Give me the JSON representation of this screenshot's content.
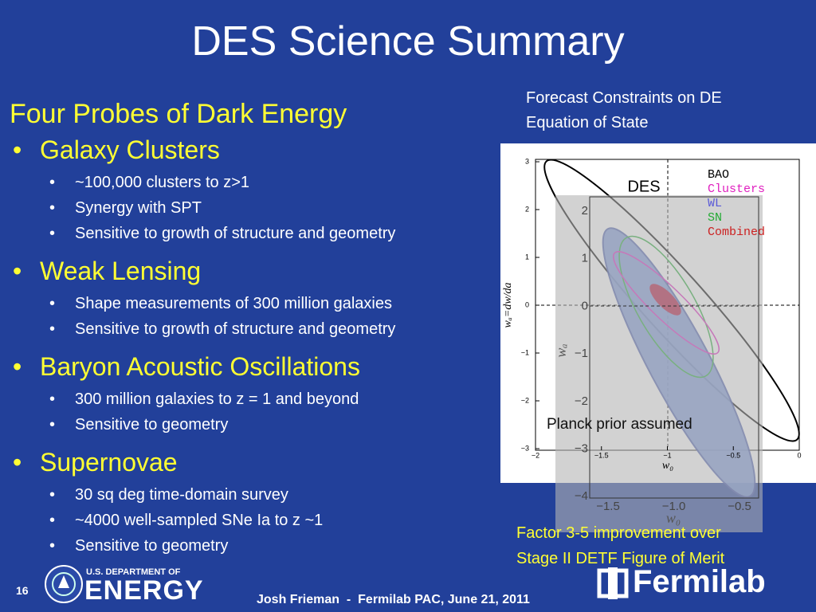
{
  "title": "DES Science Summary",
  "probes_section": {
    "heading": "Four Probes of Dark Energy",
    "probes": [
      {
        "name": "Galaxy Clusters",
        "points": [
          "~100,000 clusters to z>1",
          "Synergy with SPT",
          "Sensitive to growth of structure and geometry"
        ]
      },
      {
        "name": "Weak Lensing",
        "points": [
          "Shape measurements of 300 million galaxies",
          "Sensitive to growth of structure and geometry"
        ]
      },
      {
        "name": "Baryon Acoustic Oscillations",
        "points": [
          "300 million galaxies to z = 1 and beyond",
          "Sensitive to geometry"
        ]
      },
      {
        "name": "Supernovae",
        "points": [
          "30 sq deg time-domain survey",
          "~4000 well-sampled SNe Ia to z ~1",
          "Sensitive to geometry"
        ]
      }
    ]
  },
  "figure": {
    "caption": [
      "Forecast Constraints on DE",
      "Equation of State"
    ],
    "outer_plot": {
      "x_ticks": [
        "−2",
        "−1.5",
        "−1",
        "−0.5",
        "0"
      ],
      "y_ticks": [
        "3",
        "2",
        "1",
        "0",
        "−1",
        "−2",
        "−3"
      ],
      "x_label": "w₀",
      "y_label": "wₐ=dw/da",
      "legend": [
        "BAO",
        "Clusters",
        "WL",
        "SN",
        "Combined"
      ]
    },
    "inner_plot": {
      "label": "DES",
      "x_ticks": [
        "−1.5",
        "−1.0",
        "−0.5"
      ],
      "y_ticks": [
        "2",
        "1",
        "0",
        "−1",
        "−2",
        "−3",
        "−4"
      ],
      "x_label": "w₀",
      "y_label": "wₐ",
      "note": "Planck prior assumed"
    }
  },
  "result_note": [
    "Factor 3-5 improvement over",
    "Stage II DETF Figure of Merit"
  ],
  "footer": {
    "slide_number": "16",
    "doe_line": "U.S. DEPARTMENT OF",
    "doe_name": "ENERGY",
    "credit": "Josh Frieman  -  Fermilab PAC, June 21, 2011",
    "lab_name": "Fermilab"
  }
}
